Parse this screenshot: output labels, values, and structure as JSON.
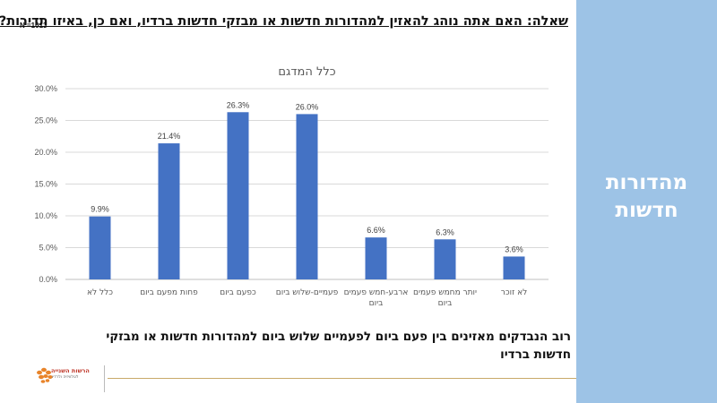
{
  "slide": {
    "question": "שאלה: האם אתה נוהג להאזין למהדורות חדשות או מבזקי חדשות ברדיו, ואם כן, באיזו תדירות?",
    "sample_size": "N =1013",
    "side_title": "מהדורות חדשות",
    "conclusion": "רוב הנבדקים מאזינים בין פעם ביום לפעמיים שלוש ביום למהדורות חדשות או מבזקי חדשות ברדיו",
    "logo_name": "הרשות השנייה",
    "logo_tagline": "לטלוויזיה ולרדיו"
  },
  "colors": {
    "bar": "#4472c4",
    "side_panel": "#9dc3e6",
    "grid": "#d9d9d9",
    "footer_line": "#c9a96a",
    "logo_orange": "#e8842a"
  },
  "chart_data": {
    "type": "bar",
    "title": "כלל המדגם",
    "categories": [
      "כלל לא",
      "פחות מפעם ביום",
      "כפעם ביום",
      "פעמיים-שלוש ביום",
      "ארבע-חמש פעמים ביום",
      "יותר מחמש פעמים ביום",
      "לא זוכר"
    ],
    "category_lines": [
      [
        "כלל לא"
      ],
      [
        "פחות מפעם ביום"
      ],
      [
        "כפעם ביום"
      ],
      [
        "פעמיים-שלוש ביום"
      ],
      [
        "ארבע-חמש פעמים",
        "ביום"
      ],
      [
        "יותר מחמש פעמים",
        "ביום"
      ],
      [
        "לא זוכר"
      ]
    ],
    "values": [
      9.9,
      21.4,
      26.3,
      26.0,
      6.6,
      6.3,
      3.6
    ],
    "value_labels": [
      "9.9%",
      "21.4%",
      "26.3%",
      "26.0%",
      "6.6%",
      "6.3%",
      "3.6%"
    ],
    "ylim": [
      0,
      30
    ],
    "yticks": [
      0,
      5,
      10,
      15,
      20,
      25,
      30
    ],
    "ytick_labels": [
      "0.0%",
      "5.0%",
      "10.0%",
      "15.0%",
      "20.0%",
      "25.0%",
      "30.0%"
    ],
    "xlabel": "",
    "ylabel": "",
    "grid": true,
    "legend": false
  }
}
